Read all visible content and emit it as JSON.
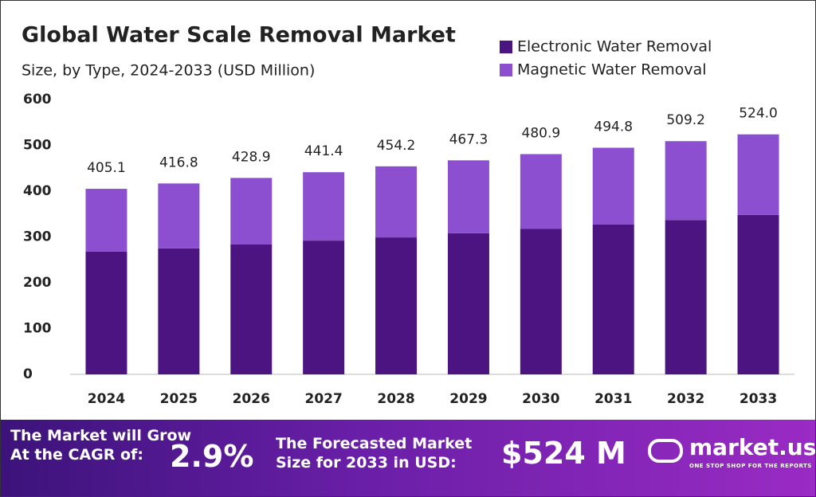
{
  "chart_data": {
    "type": "stacked_bar",
    "title": "Global Water Scale Removal Market",
    "subtitle": "Size, by Type, 2024-2033 (USD Million)",
    "categories": [
      "2024",
      "2025",
      "2026",
      "2027",
      "2028",
      "2029",
      "2030",
      "2031",
      "2032",
      "2033"
    ],
    "series": [
      {
        "name": "Electronic Water Removal",
        "color": "#4b1480",
        "values": [
          268,
          275,
          283.5,
          292,
          299,
          308,
          318,
          327,
          337,
          348
        ]
      },
      {
        "name": "Magnetic Water Removal",
        "color": "#8b4fd0",
        "values": [
          137.1,
          141.8,
          145.4,
          149.4,
          155.2,
          159.3,
          162.9,
          167.8,
          172.2,
          176.0
        ]
      }
    ],
    "totals": [
      405.1,
      416.8,
      428.9,
      441.4,
      454.2,
      467.3,
      480.9,
      494.8,
      509.2,
      524.0
    ],
    "total_labels": [
      "405.1",
      "416.8",
      "428.9",
      "441.4",
      "454.2",
      "467.3",
      "480.9",
      "494.8",
      "509.2",
      "524.0"
    ],
    "ylim": [
      0,
      600
    ],
    "yticks": [
      0,
      100,
      200,
      300,
      400,
      500,
      600
    ],
    "grid": false,
    "legend": "top-right"
  },
  "footer": {
    "cagr_line1": "The Market will Grow",
    "cagr_line2": "At the CAGR of:",
    "cagr_value": "2.9%",
    "forecast_line1": "The Forecasted Market",
    "forecast_line2": "Size for 2033 in USD:",
    "forecast_value": "$524 M",
    "brand": "market.us",
    "tagline": "ONE STOP SHOP FOR THE REPORTS"
  }
}
